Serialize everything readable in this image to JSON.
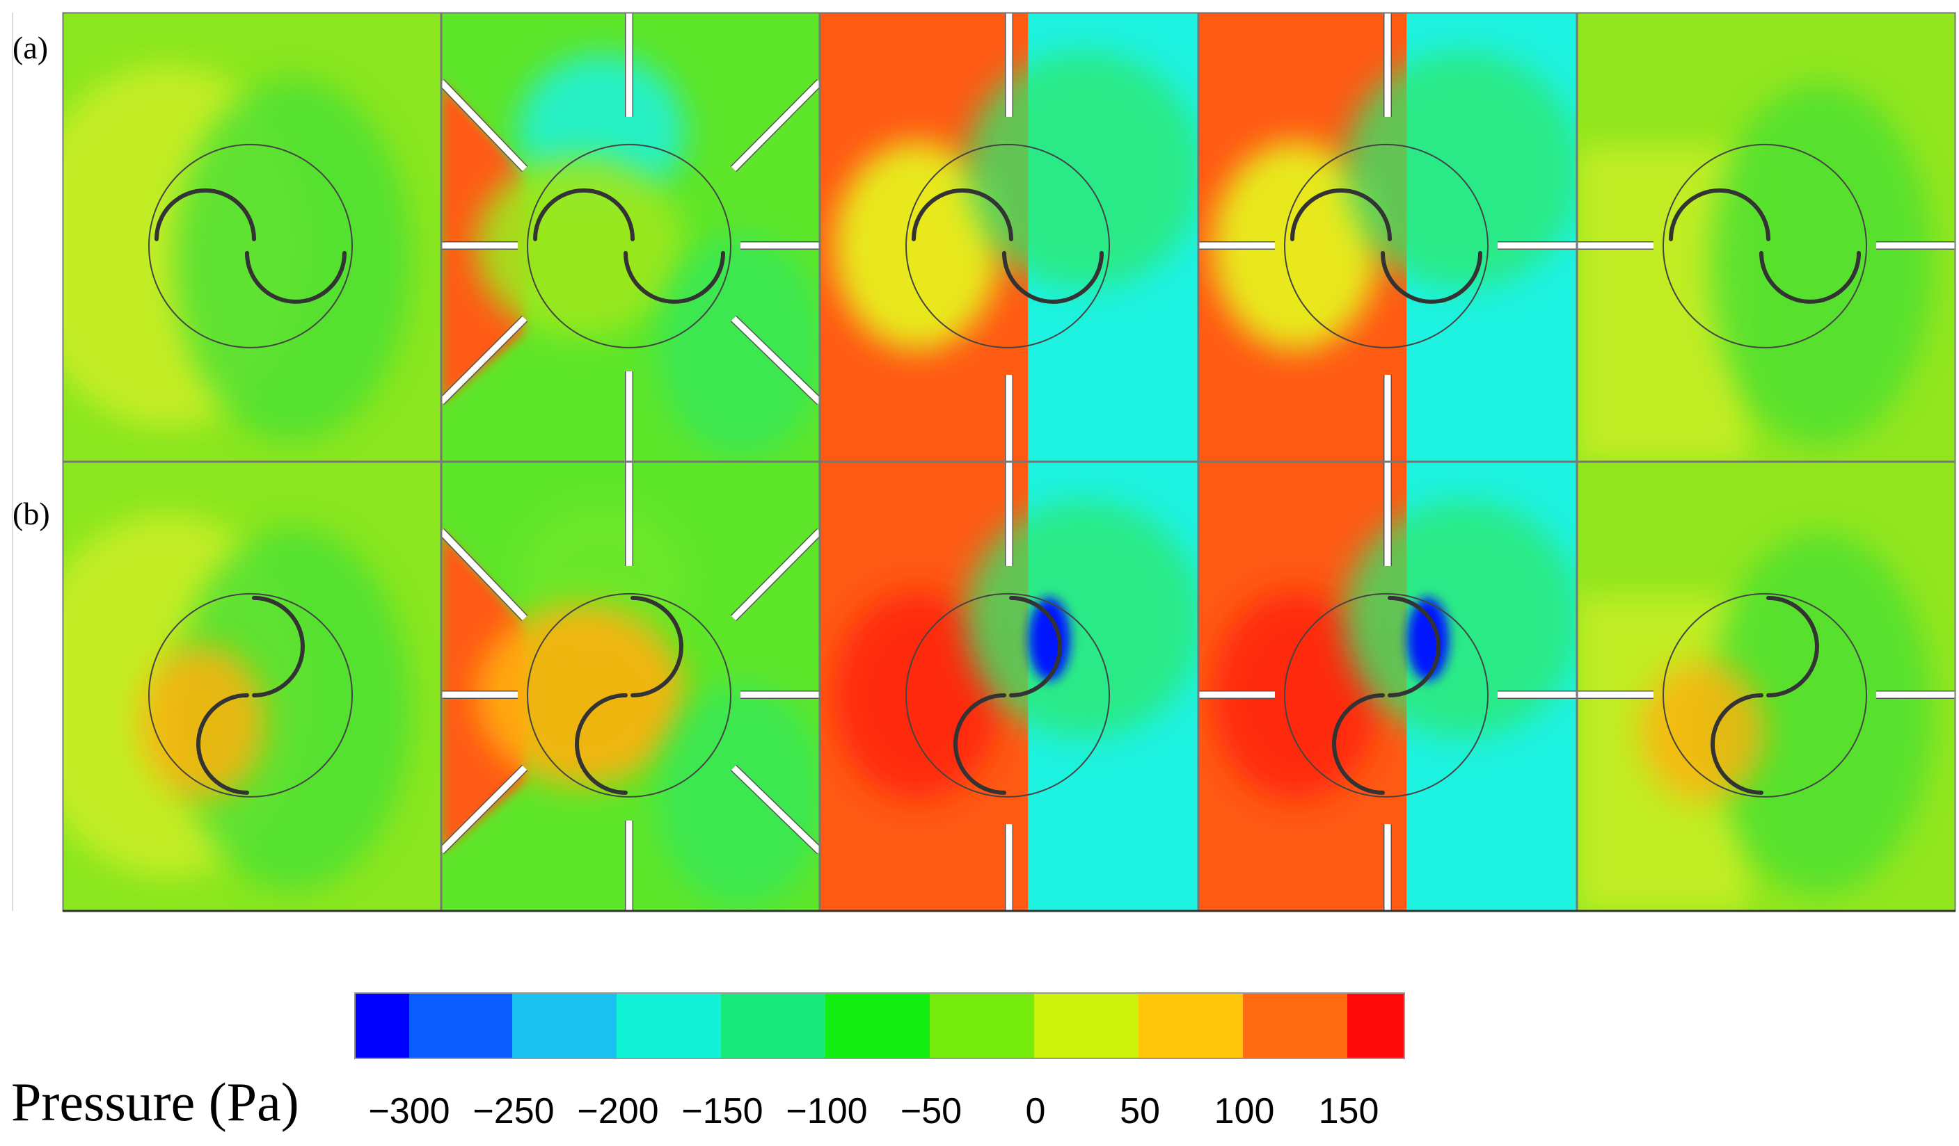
{
  "figure": {
    "row_labels": [
      "(a)",
      "(b)"
    ],
    "columns": 5,
    "rows": 2
  },
  "legend": {
    "title": "Pressure (Pa)",
    "tick_labels": [
      "−300",
      "−250",
      "−200",
      "−150",
      "−100",
      "−50",
      "0",
      "50",
      "100",
      "150"
    ],
    "colors": [
      "#0000ff",
      "#0a5cff",
      "#19c0f0",
      "#12f2d6",
      "#19e87a",
      "#12ee12",
      "#76ec0e",
      "#ccf20c",
      "#ffc60a",
      "#ff6a12",
      "#ff0a0a"
    ]
  },
  "panel_colors": {
    "background_green": "#72e826",
    "background_yellow": "#b8ec2c",
    "high_red": "#ff5a14",
    "low_cyan": "#1ef2e0",
    "low_blue": "#0018ff",
    "outline": "#555555"
  }
}
